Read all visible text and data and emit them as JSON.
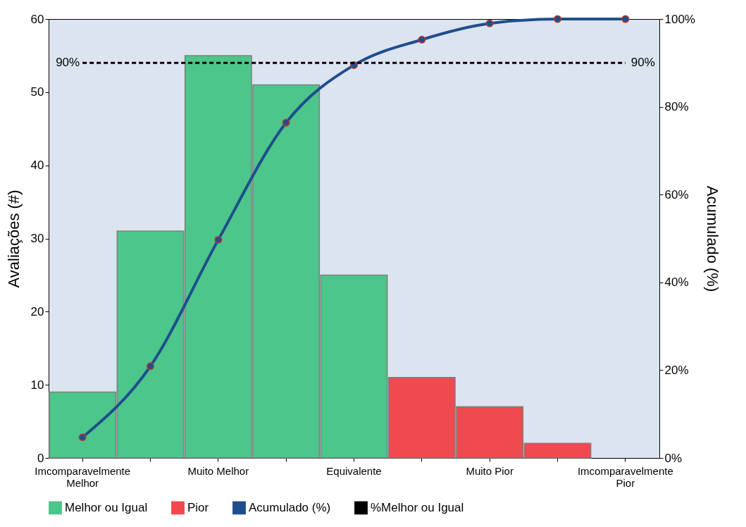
{
  "chart_data": {
    "type": "bar",
    "ylabel": "Avaliações (#)",
    "y2label": "Acumulado (%)",
    "categories": [
      "Imcomparavelmente Melhor",
      null,
      "Muito Melhor",
      null,
      "Equivalente",
      null,
      "Muito Pior",
      null,
      "Imcomparavelmente Pior"
    ],
    "series": [
      {
        "name": "Melhor ou Igual",
        "color": "#4cc68a",
        "values": [
          9,
          31,
          55,
          51,
          25,
          null,
          null,
          null,
          null
        ]
      },
      {
        "name": "Pior",
        "color": "#ef4a50",
        "values": [
          null,
          null,
          null,
          null,
          null,
          11,
          7,
          2,
          null
        ]
      },
      {
        "name": "Acumulado (%)",
        "type": "line",
        "axis": "y2",
        "color": "#1f4e8c",
        "marker": "circle",
        "values": [
          4.7,
          20.9,
          49.7,
          76.4,
          89.5,
          95.3,
          99.0,
          100,
          100
        ]
      },
      {
        "name": "%Melhor ou Igual",
        "type": "line",
        "axis": "y2",
        "color": "#000000",
        "marker": "none",
        "line_style": "dashed",
        "values": [
          90,
          90,
          90,
          90,
          90,
          90,
          90,
          90,
          90
        ],
        "value_labels": [
          "90%",
          null,
          null,
          null,
          null,
          null,
          null,
          null,
          "90%"
        ]
      }
    ],
    "ylim": [
      0,
      60
    ],
    "yticks": [
      0,
      10,
      20,
      30,
      40,
      50,
      60
    ],
    "y2lim": [
      0,
      100
    ],
    "y2ticks": [
      {
        "value": 0,
        "label": "0%"
      },
      {
        "value": 20,
        "label": "20%"
      },
      {
        "value": 40,
        "label": "40%"
      },
      {
        "value": 60,
        "label": "60%"
      },
      {
        "value": 80,
        "label": "80%"
      },
      {
        "value": 100,
        "label": "100%"
      }
    ],
    "grid": false,
    "legend": "bottom"
  }
}
